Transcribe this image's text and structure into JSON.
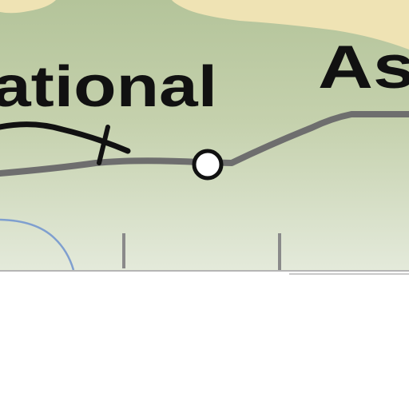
{
  "map": {
    "labels": {
      "partial_left": "ational",
      "partial_right": "As"
    },
    "colors": {
      "sand": "#efe3b4",
      "land_green": "#c2cfa8",
      "land_light": "#dfe6d4",
      "route_gray": "#6e6e6e",
      "rail_black": "#111111",
      "blue_line": "#7f9fcf",
      "background": "#ffffff"
    },
    "icons": {
      "station": "open-circle-station-icon",
      "rail_tick": "railroad-crossing-tick-icon"
    }
  }
}
